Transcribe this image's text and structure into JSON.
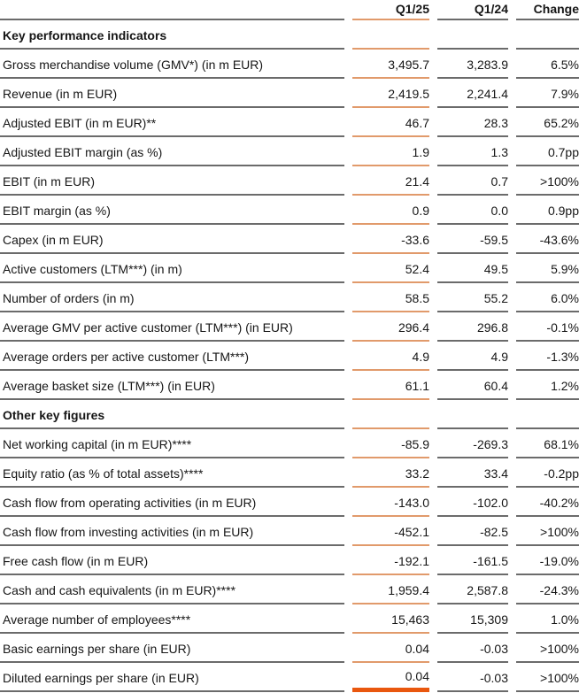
{
  "table": {
    "columns": [
      "",
      "Q1/25",
      "Q1/24",
      "Change"
    ],
    "sections": [
      {
        "title": "Key performance indicators",
        "rows": [
          {
            "label": "Gross merchandise volume (GMV*) (in m EUR)",
            "q125": "3,495.7",
            "q124": "3,283.9",
            "change": "6.5%"
          },
          {
            "label": "Revenue (in m EUR)",
            "q125": "2,419.5",
            "q124": "2,241.4",
            "change": "7.9%"
          },
          {
            "label": "Adjusted EBIT (in m EUR)**",
            "q125": "46.7",
            "q124": "28.3",
            "change": "65.2%"
          },
          {
            "label": "Adjusted EBIT margin (as %)",
            "q125": "1.9",
            "q124": "1.3",
            "change": "0.7pp"
          },
          {
            "label": "EBIT (in m EUR)",
            "q125": "21.4",
            "q124": "0.7",
            "change": ">100%"
          },
          {
            "label": "EBIT margin (as %)",
            "q125": "0.9",
            "q124": "0.0",
            "change": "0.9pp"
          },
          {
            "label": "Capex (in m EUR)",
            "q125": "-33.6",
            "q124": "-59.5",
            "change": "-43.6%"
          },
          {
            "label": "Active customers (LTM***) (in m)",
            "q125": "52.4",
            "q124": "49.5",
            "change": "5.9%"
          },
          {
            "label": "Number of orders (in m)",
            "q125": "58.5",
            "q124": "55.2",
            "change": "6.0%"
          },
          {
            "label": "Average GMV per active customer (LTM***) (in EUR)",
            "q125": "296.4",
            "q124": "296.8",
            "change": "-0.1%"
          },
          {
            "label": "Average orders per active customer (LTM***)",
            "q125": "4.9",
            "q124": "4.9",
            "change": "-1.3%"
          },
          {
            "label": "Average basket size (LTM***) (in EUR)",
            "q125": "61.1",
            "q124": "60.4",
            "change": "1.2%"
          }
        ]
      },
      {
        "title": "Other key figures",
        "rows": [
          {
            "label": "Net working capital (in m EUR)****",
            "q125": "-85.9",
            "q124": "-269.3",
            "change": "68.1%"
          },
          {
            "label": "Equity ratio (as % of total assets)****",
            "q125": "33.2",
            "q124": "33.4",
            "change": "-0.2pp"
          },
          {
            "label": "Cash flow from operating activities (in m EUR)",
            "q125": "-143.0",
            "q124": "-102.0",
            "change": "-40.2%"
          },
          {
            "label": "Cash flow from investing activities (in m EUR)",
            "q125": "-452.1",
            "q124": "-82.5",
            "change": ">100%"
          },
          {
            "label": "Free cash flow (in m EUR)",
            "q125": "-192.1",
            "q124": "-161.5",
            "change": "-19.0%"
          },
          {
            "label": "Cash and cash equivalents (in m EUR)****",
            "q125": "1,959.4",
            "q124": "2,587.8",
            "change": "-24.3%"
          },
          {
            "label": "Average number of employees****",
            "q125": "15,463",
            "q124": "15,309",
            "change": "1.0%"
          },
          {
            "label": "Basic earnings per share (in EUR)",
            "q125": "0.04",
            "q124": "-0.03",
            "change": ">100%"
          },
          {
            "label": "Diluted earnings per share (in EUR)",
            "q125": "0.04",
            "q124": "-0.03",
            "change": ">100%"
          }
        ]
      }
    ]
  },
  "colors": {
    "line_gray": "#6b6b6b",
    "accent_orange_light": "#e19a6b",
    "accent_orange_strong": "#e9570e",
    "text": "#161616"
  }
}
